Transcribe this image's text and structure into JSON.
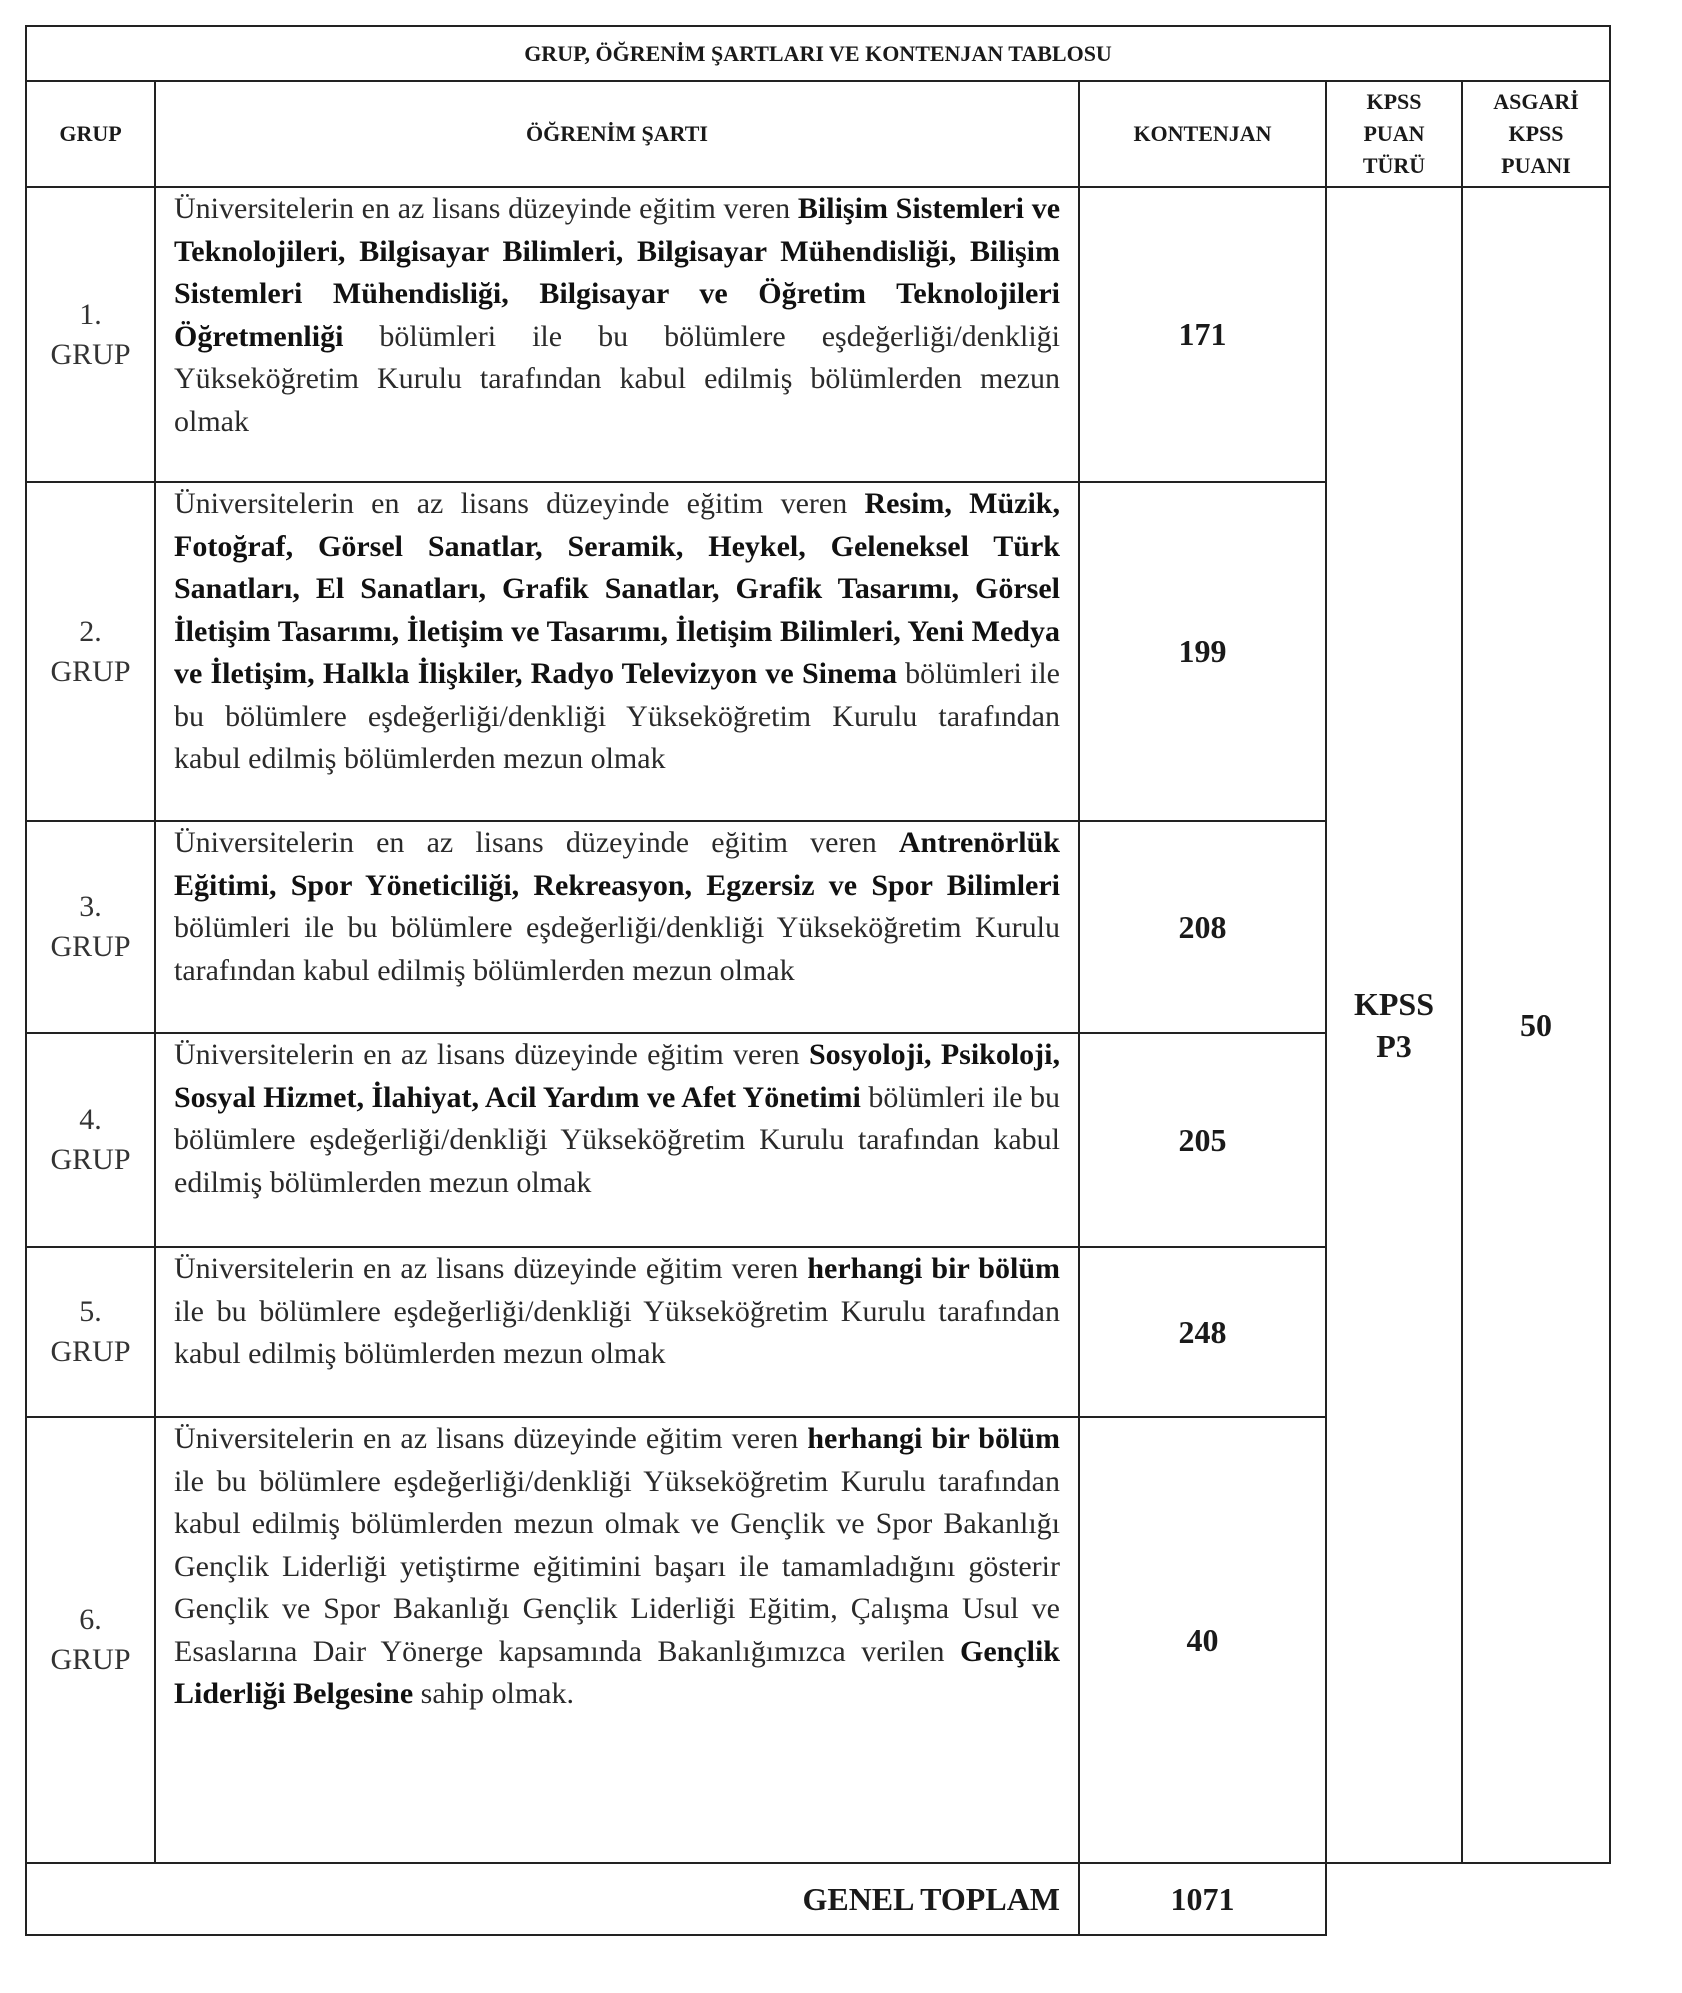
{
  "title": "GRUP, ÖĞRENİM ŞARTLARI VE KONTENJAN TABLOSU",
  "headers": {
    "grup": "GRUP",
    "ogrenim": "ÖĞRENİM ŞARTI",
    "kontenjan": "KONTENJAN",
    "puan_turu": [
      "KPSS",
      "PUAN",
      "TÜRÜ"
    ],
    "asgari": [
      "ASGARİ",
      "KPSS",
      "PUANI"
    ]
  },
  "rows": [
    {
      "num": "1.",
      "grup": "GRUP",
      "kontenjan": "171",
      "segments": [
        {
          "t": "Üniversitelerin en az lisans düzeyinde eğitim veren ",
          "b": false
        },
        {
          "t": "Bilişim Sistemleri ve Teknolojileri, Bilgisayar Bilimleri, Bilgisayar Mühendisliği, Bilişim Sistemleri Mühendisliği, Bilgisayar ve Öğretim Teknolojileri Öğretmenliği",
          "b": true
        },
        {
          "t": " bölümleri ile bu bölümlere eşdeğerliği/denkliği Yükseköğretim Kurulu tarafından kabul edilmiş bölümlerden mezun olmak",
          "b": false
        }
      ]
    },
    {
      "num": "2.",
      "grup": "GRUP",
      "kontenjan": "199",
      "segments": [
        {
          "t": "Üniversitelerin en az lisans düzeyinde eğitim veren ",
          "b": false
        },
        {
          "t": "Resim, Müzik, Fotoğraf, Görsel Sanatlar, Seramik, Heykel, Geleneksel Türk Sanatları, El Sanatları, Grafik Sanatlar, Grafik Tasarımı, Görsel İletişim Tasarımı, İletişim ve Tasarımı, İletişim Bilimleri, Yeni Medya ve İletişim, Halkla İlişkiler, Radyo Televizyon ve Sinema",
          "b": true
        },
        {
          "t": " bölümleri ile bu bölümlere eşdeğerliği/denkliği Yükseköğretim Kurulu tarafından kabul edilmiş bölümlerden mezun olmak",
          "b": false
        }
      ]
    },
    {
      "num": "3.",
      "grup": "GRUP",
      "kontenjan": "208",
      "segments": [
        {
          "t": "Üniversitelerin en az lisans düzeyinde eğitim veren ",
          "b": false
        },
        {
          "t": "Antrenörlük Eğitimi, Spor Yöneticiliği, Rekreasyon, Egzersiz ve Spor Bilimleri",
          "b": true
        },
        {
          "t": " bölümleri ile bu bölümlere eşdeğerliği/denkliği Yükseköğretim Kurulu tarafından kabul edilmiş bölümlerden mezun olmak",
          "b": false
        }
      ]
    },
    {
      "num": "4.",
      "grup": "GRUP",
      "kontenjan": "205",
      "segments": [
        {
          "t": "Üniversitelerin en az lisans düzeyinde eğitim veren ",
          "b": false
        },
        {
          "t": "Sosyoloji, Psikoloji, Sosyal Hizmet, İlahiyat, Acil Yardım ve Afet Yönetimi",
          "b": true
        },
        {
          "t": " bölümleri ile bu bölümlere eşdeğerliği/denkliği Yükseköğretim Kurulu tarafından kabul edilmiş bölümlerden mezun olmak",
          "b": false
        }
      ]
    },
    {
      "num": "5.",
      "grup": "GRUP",
      "kontenjan": "248",
      "segments": [
        {
          "t": "Üniversitelerin en az lisans düzeyinde eğitim veren ",
          "b": false
        },
        {
          "t": "herhangi bir bölüm",
          "b": true
        },
        {
          "t": " ile bu bölümlere eşdeğerliği/denkliği Yükseköğretim Kurulu tarafından kabul edilmiş bölümlerden mezun olmak",
          "b": false
        }
      ]
    },
    {
      "num": "6.",
      "grup": "GRUP",
      "kontenjan": "40",
      "segments": [
        {
          "t": "Üniversitelerin en az lisans düzeyinde eğitim veren ",
          "b": false
        },
        {
          "t": "herhangi bir bölüm",
          "b": true
        },
        {
          "t": " ile bu bölümlere eşdeğerliği/denkliği Yükseköğretim Kurulu tarafından kabul edilmiş bölümlerden mezun olmak ve Gençlik ve Spor Bakanlığı Gençlik Liderliği yetiştirme eğitimini başarı ile tamamladığını gösterir Gençlik ve Spor Bakanlığı Gençlik Liderliği Eğitim, Çalışma Usul ve Esaslarına Dair Yönerge kapsamında Bakanlığımızca verilen ",
          "b": false
        },
        {
          "t": "Gençlik Liderliği Belgesine",
          "b": true
        },
        {
          "t": " sahip olmak.",
          "b": false
        }
      ]
    }
  ],
  "puan_turu": [
    "KPSS",
    "P3"
  ],
  "asgari_puan": "50",
  "total": {
    "label": "GENEL TOPLAM",
    "value": "1071"
  }
}
